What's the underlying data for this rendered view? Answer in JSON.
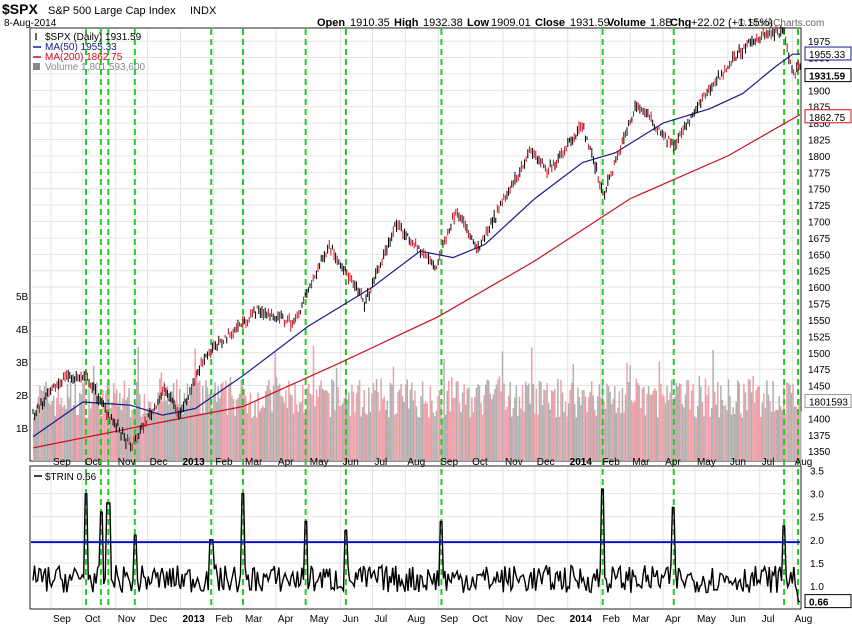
{
  "header": {
    "symbol": "$SPX",
    "name": "S&P 500 Large Cap Index",
    "exchange": "INDX",
    "date": "8-Aug-2014",
    "watermark": "© StockCharts.com",
    "quote": {
      "open_label": "Open",
      "open": "1910.35",
      "high_label": "High",
      "high": "1932.38",
      "low_label": "Low",
      "low": "1909.01",
      "close_label": "Close",
      "close": "1931.59",
      "volume_label": "Volume",
      "volume": "1.8B",
      "chg_label": "Chg",
      "chg": "+22.02 (+1.15%)"
    }
  },
  "legend": [
    {
      "text": "$SPX (Daily) 1931.59",
      "color": "#000000",
      "kind": "ohlc"
    },
    {
      "text": "MA(50) 1955.33",
      "color": "#1a1a8c",
      "kind": "line"
    },
    {
      "text": "MA(200) 1862.75",
      "color": "#cc1122",
      "kind": "line"
    },
    {
      "text": "Volume 1,801,593,600",
      "color": "#888888",
      "kind": "bar"
    }
  ],
  "trin_legend": "$TRIN 0.66",
  "colors": {
    "price": "#000000",
    "ma50": "#1a1a8c",
    "ma200": "#cc1122",
    "vol_up": "#b0b0b0",
    "vol_down": "#f0a0a8",
    "signal": "#22cc22",
    "trin_ref": "#1010cc",
    "grid": "#e4e4e4"
  },
  "chart_data": [
    {
      "type": "line",
      "title": "$SPX S&P 500 Large Cap Index INDX",
      "x_ticks": [
        "Sep",
        "Oct",
        "Nov",
        "Dec",
        "2013",
        "Feb",
        "Mar",
        "Apr",
        "May",
        "Jun",
        "Jul",
        "Aug",
        "Sep",
        "Oct",
        "Nov",
        "Dec",
        "2014",
        "Feb",
        "Mar",
        "Apr",
        "May",
        "Jun",
        "Jul",
        "Aug"
      ],
      "y_ticks": [
        1350,
        1375,
        1400,
        1425,
        1450,
        1475,
        1500,
        1525,
        1550,
        1575,
        1600,
        1625,
        1650,
        1675,
        1700,
        1725,
        1750,
        1775,
        1800,
        1825,
        1850,
        1875,
        1900,
        1925,
        1950,
        1975
      ],
      "ylim": [
        1335,
        1995
      ],
      "value_tags": {
        "ma50": "1955.33",
        "close": "1931.59",
        "ma200": "1862.75",
        "volume": "1801593"
      },
      "volume_ticks": [
        "1B",
        "2B",
        "3B",
        "4B",
        "5B"
      ],
      "volume_range_billions": [
        0,
        5.6
      ],
      "series": [
        {
          "name": "$SPX (Daily)",
          "x": [
            "2012-08-15",
            "2012-09-14",
            "2012-10-05",
            "2012-10-24",
            "2012-11-15",
            "2012-12-18",
            "2012-12-31",
            "2013-01-24",
            "2013-03-14",
            "2013-04-18",
            "2013-05-21",
            "2013-06-24",
            "2013-07-23",
            "2013-08-30",
            "2013-09-18",
            "2013-10-08",
            "2013-11-27",
            "2013-12-13",
            "2014-01-15",
            "2014-02-04",
            "2014-03-07",
            "2014-04-11",
            "2014-05-14",
            "2014-06-10",
            "2014-07-03",
            "2014-07-24",
            "2014-08-01",
            "2014-08-08"
          ],
          "values": [
            1405,
            1465,
            1460,
            1410,
            1355,
            1445,
            1405,
            1495,
            1565,
            1545,
            1665,
            1575,
            1695,
            1630,
            1720,
            1655,
            1810,
            1775,
            1848,
            1740,
            1880,
            1815,
            1900,
            1955,
            1985,
            1988,
            1925,
            1932
          ]
        },
        {
          "name": "MA(50)",
          "x": [
            "2012-08-15",
            "2012-10-01",
            "2012-11-15",
            "2012-12-15",
            "2013-01-15",
            "2013-03-01",
            "2013-05-01",
            "2013-07-01",
            "2013-08-15",
            "2013-09-15",
            "2013-10-15",
            "2013-12-01",
            "2014-01-15",
            "2014-02-15",
            "2014-04-01",
            "2014-05-15",
            "2014-06-15",
            "2014-07-15",
            "2014-08-01",
            "2014-08-08"
          ],
          "values": [
            1372,
            1425,
            1420,
            1405,
            1415,
            1465,
            1540,
            1600,
            1655,
            1645,
            1665,
            1735,
            1790,
            1805,
            1850,
            1872,
            1895,
            1935,
            1955,
            1955
          ]
        },
        {
          "name": "MA(200)",
          "x": [
            "2012-08-15",
            "2012-12-01",
            "2013-03-01",
            "2013-06-01",
            "2013-09-01",
            "2013-12-01",
            "2014-03-01",
            "2014-06-01",
            "2014-08-08"
          ],
          "values": [
            1355,
            1390,
            1418,
            1485,
            1555,
            1640,
            1735,
            1800,
            1863
          ]
        }
      ]
    },
    {
      "type": "line",
      "title": "$TRIN",
      "y_ticks": [
        1.0,
        1.5,
        2.0,
        2.5,
        3.0,
        3.5
      ],
      "ylim": [
        0.5,
        3.6
      ],
      "reference_line": 1.95,
      "value_tag": "0.66",
      "series": [
        {
          "name": "$TRIN",
          "x": [
            "2012-10-04",
            "2012-10-18",
            "2012-10-25",
            "2012-11-19",
            "2013-01-30",
            "2013-03-01",
            "2013-04-29",
            "2013-06-06",
            "2013-09-04",
            "2014-02-03",
            "2014-04-11",
            "2014-07-24",
            "2014-08-08"
          ],
          "values": [
            3.0,
            2.6,
            2.8,
            2.1,
            2.0,
            3.0,
            2.4,
            2.2,
            2.4,
            3.1,
            2.7,
            2.3,
            0.66
          ]
        }
      ]
    }
  ]
}
